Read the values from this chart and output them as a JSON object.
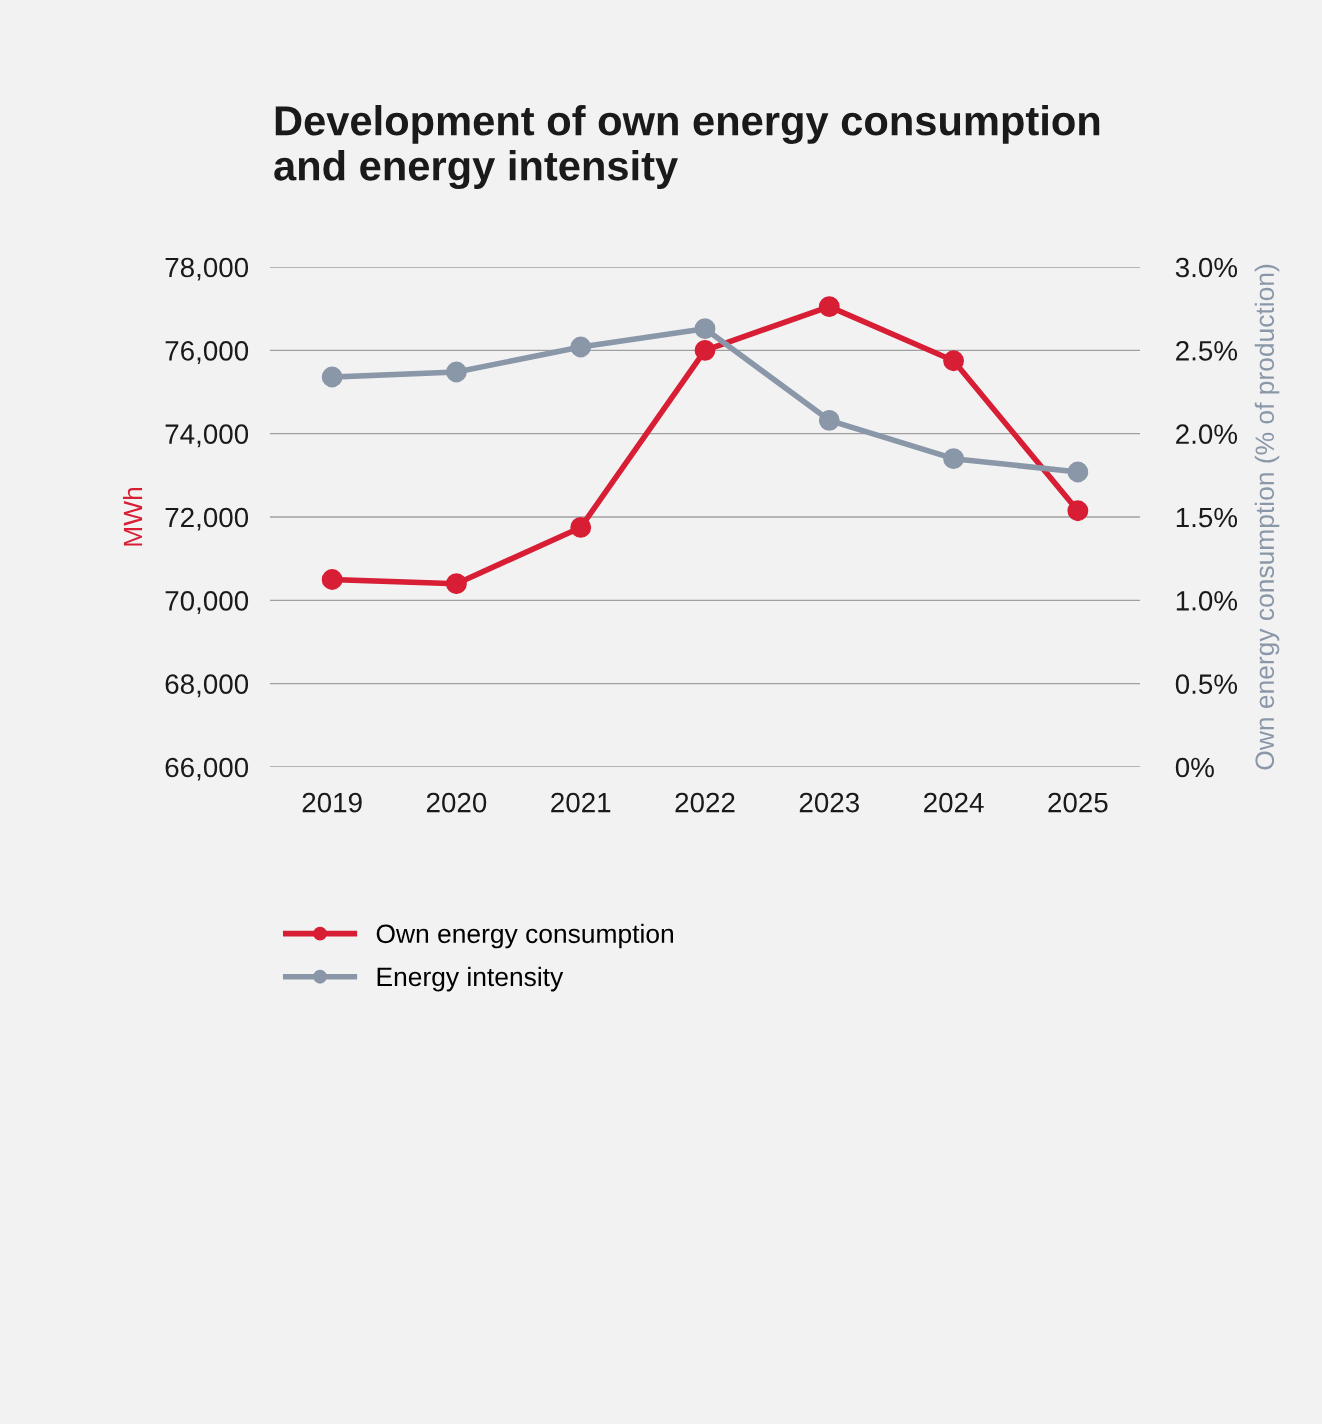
{
  "chart_data": {
    "type": "line",
    "title": "Development of own energy consumption\nand energy intensity",
    "categories": [
      "2019",
      "2020",
      "2021",
      "2022",
      "2023",
      "2024",
      "2025"
    ],
    "series": [
      {
        "name": "Own energy consumption",
        "color": "#d81e34",
        "values": [
          70500,
          70400,
          71750,
          76000,
          77050,
          75750,
          72150
        ]
      },
      {
        "name": "Energy intensity",
        "color": "#8a97a8",
        "axis": "y2",
        "values": [
          2.34,
          2.37,
          2.52,
          2.63,
          2.08,
          1.85,
          1.77
        ]
      }
    ],
    "ylabel": "MWh",
    "y2label": "Own energy consumption (% of production)",
    "ylim": [
      66000,
      78000
    ],
    "yticks": [
      {
        "value": 66000,
        "label": "66,000"
      },
      {
        "value": 68000,
        "label": "68,000"
      },
      {
        "value": 70000,
        "label": "70,000"
      },
      {
        "value": 72000,
        "label": "72,000"
      },
      {
        "value": 74000,
        "label": "74,000"
      },
      {
        "value": 76000,
        "label": "76,000"
      },
      {
        "value": 78000,
        "label": "78,000"
      }
    ],
    "y2lim": [
      0,
      3
    ],
    "y2ticks": [
      {
        "value": 0,
        "label": "0%"
      },
      {
        "value": 0.5,
        "label": "0.5%"
      },
      {
        "value": 1,
        "label": "1.0%"
      },
      {
        "value": 1.5,
        "label": "1.5%"
      },
      {
        "value": 2,
        "label": "2.0%"
      },
      {
        "value": 2.5,
        "label": "2.5%"
      },
      {
        "value": 3,
        "label": "3.0%"
      }
    ],
    "grid": "y",
    "legend": "bottom",
    "marker": "circle",
    "line_style": "solid"
  }
}
